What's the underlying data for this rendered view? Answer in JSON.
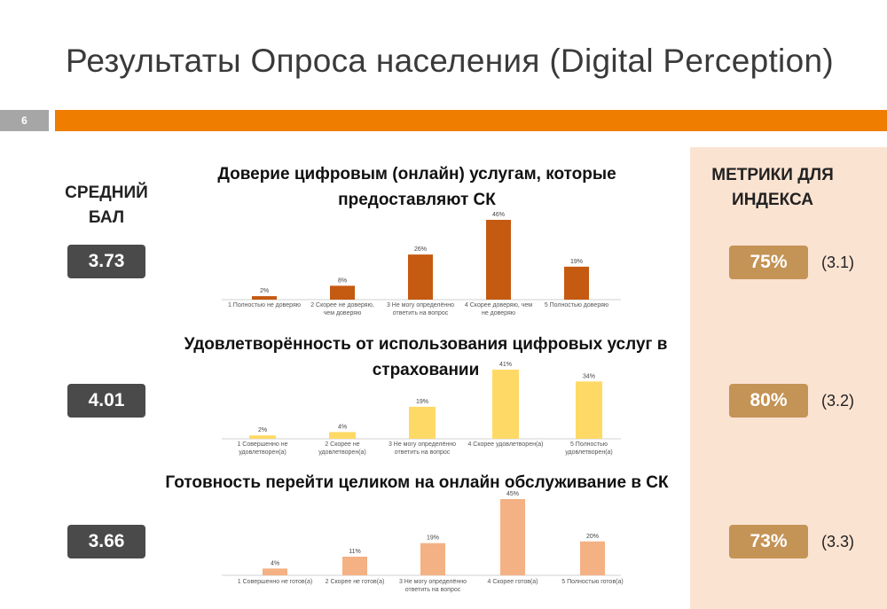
{
  "slide": {
    "title": "Результаты Опроса населения (Digital Perception)",
    "slide_number": "6",
    "average_header": "СРЕДНИЙ БАЛ",
    "metrics_header": "МЕТРИКИ ДЛЯ ИНДЕКСА",
    "colors": {
      "accent_orange": "#ef7d00",
      "score_box": "#4a4a4a",
      "metric_box": "#c49356",
      "metrics_panel": "#fbe3d2"
    }
  },
  "rows": [
    {
      "average": "3.73",
      "metric": "75%",
      "metric_code": "(3.1)"
    },
    {
      "average": "4.01",
      "metric": "80%",
      "metric_code": "(3.2)"
    },
    {
      "average": "3.66",
      "metric": "73%",
      "metric_code": "(3.3)"
    }
  ],
  "chart_data": [
    {
      "type": "bar",
      "title": "Доверие цифровым (онлайн) услугам, которые предоставляют СК",
      "color": "#c55a11",
      "categories": [
        "1 Полностью не доверяю",
        "2 Скорее не доверяю, чем доверяю",
        "3 Не могу определённо ответить на вопрос",
        "4 Скорее доверяю, чем не доверяю",
        "5 Полностью доверяю"
      ],
      "values": [
        2,
        8,
        26,
        46,
        19
      ],
      "value_labels": [
        "2%",
        "8%",
        "26%",
        "46%",
        "19%"
      ]
    },
    {
      "type": "bar",
      "title": "Удовлетворённость от использования цифровых услуг в страховании",
      "color": "#ffd966",
      "categories": [
        "1 Совершенно не удовлетворен(а)",
        "2 Скорее не удовлетворен(а)",
        "3 Не могу определённо ответить на вопрос",
        "4 Скорее удовлетворен(а)",
        "5 Полностью удовлетворен(а)"
      ],
      "values": [
        2,
        4,
        19,
        41,
        34
      ],
      "value_labels": [
        "2%",
        "4%",
        "19%",
        "41%",
        "34%"
      ]
    },
    {
      "type": "bar",
      "title": "Готовность перейти целиком на онлайн обслуживание в СК",
      "color": "#f4b183",
      "categories": [
        "1 Совершенно не готов(а)",
        "2 Скорее не готов(а)",
        "3 Не могу определённо ответить на вопрос",
        "4 Скорее готов(а)",
        "5 Полностью готов(а)"
      ],
      "values": [
        4,
        11,
        19,
        45,
        20
      ],
      "value_labels": [
        "4%",
        "11%",
        "19%",
        "45%",
        "20%"
      ]
    }
  ]
}
